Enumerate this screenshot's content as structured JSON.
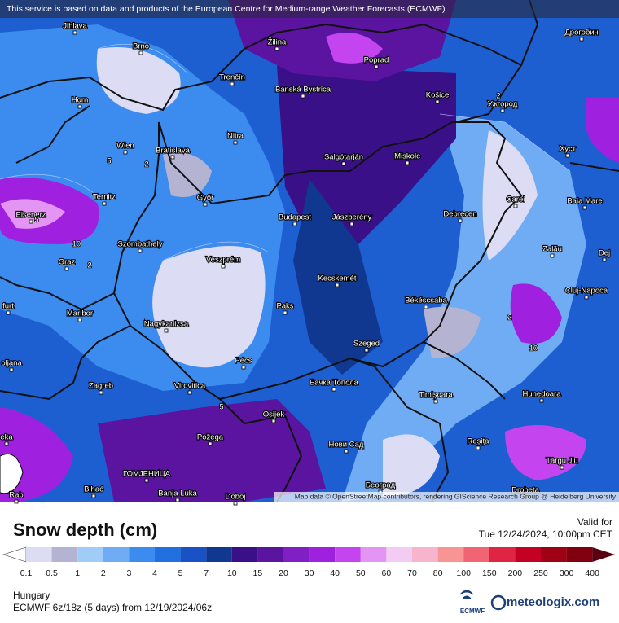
{
  "header": {
    "attribution": "This service is based on data and products of the European Centre for Medium-range Weather Forecasts (ECMWF)"
  },
  "map": {
    "credits": "Map data © OpenStreetMap contributors, rendering GIScience Research Group @ Heidelberg University",
    "cities": [
      "Jihlava",
      "Brno",
      "Žilina",
      "Poprad",
      "Дрогобич",
      "Trenčín",
      "Banská Bystrica",
      "Košice",
      "Ужгород",
      "Horn",
      "Nitra",
      "Хуст",
      "Wien",
      "Bratislava",
      "Salgótarján",
      "Miskolc",
      "Ternitz",
      "Győr",
      "Carei",
      "Baia Mare",
      "Eisenerz",
      "Budapest",
      "Jászberény",
      "Debrecen",
      "Szombathely",
      "Zalău",
      "Graz",
      "Veszprém",
      "Dej",
      "Kecskemét",
      "Cluj-Napoca",
      "Paks",
      "Békéscsaba",
      "Maribor",
      "Nagykanizsa",
      "Szeged",
      "Pécs",
      "Zagreb",
      "Virovitica",
      "Бачка Топола",
      "Timișoara",
      "Hunedoara",
      "Osijek",
      "Požega",
      "Reșița",
      "Нови Сад",
      "Târgu Jiu",
      "ГОМЈЕНИЦА",
      "Bihać",
      "Banja Luka",
      "Doboj",
      "Београд",
      "Drobeta",
      "furt",
      "oljana",
      "eka",
      "Rab"
    ],
    "contour_labels": [
      "2",
      "5",
      "10",
      "2",
      "5",
      "10",
      "2",
      "2",
      "5"
    ]
  },
  "legend": {
    "title": "Snow depth (cm)",
    "valid_label": "Valid for",
    "valid_time": "Tue 12/24/2024, 10:00pm CET",
    "labels": [
      0.1,
      0.5,
      1,
      2,
      3,
      4,
      5,
      7,
      10,
      15,
      20,
      30,
      40,
      50,
      60,
      70,
      80,
      100,
      150,
      200,
      250,
      300,
      400
    ],
    "colors": [
      "#ffffff",
      "#dcdcf4",
      "#b4b4d2",
      "#a0ccf8",
      "#70acf4",
      "#3c8cf0",
      "#2070e0",
      "#1852c4",
      "#103890",
      "#3a1088",
      "#5a14a0",
      "#8020c4",
      "#a020e0",
      "#c444f0",
      "#e494f2",
      "#f2ccf2",
      "#f8b4cc",
      "#f89494",
      "#f06474",
      "#e02444",
      "#c40024",
      "#a00014",
      "#800010",
      "#5a0010"
    ]
  },
  "footer": {
    "region": "Hungary",
    "model": "ECMWF 6z/18z (5 days) from  12/19/2024/06z",
    "ecmwf": "ECMWF",
    "brand": "meteologix.com"
  }
}
